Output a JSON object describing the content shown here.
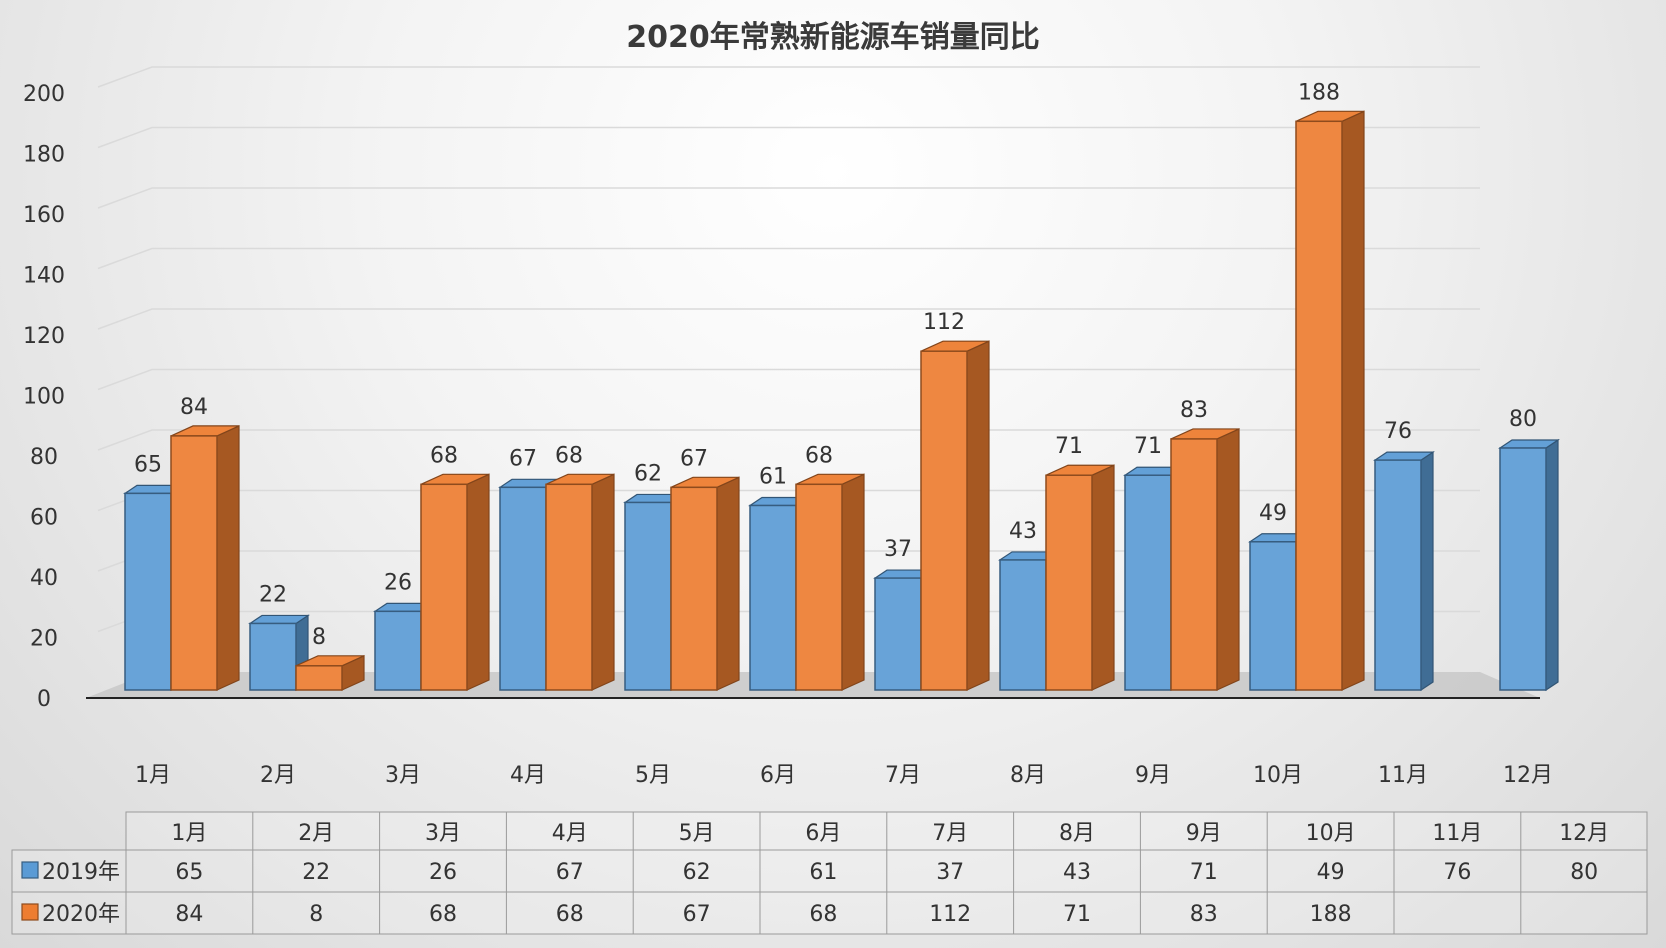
{
  "chart_data": {
    "type": "bar",
    "title": "2020年常熟新能源车销量同比",
    "categories": [
      "1月",
      "2月",
      "3月",
      "4月",
      "5月",
      "6月",
      "7月",
      "8月",
      "9月",
      "10月",
      "11月",
      "12月"
    ],
    "series": [
      {
        "name": "2019年",
        "color": "#5b9bd5",
        "values": [
          65,
          22,
          26,
          67,
          62,
          61,
          37,
          43,
          71,
          49,
          76,
          80
        ]
      },
      {
        "name": "2020年",
        "color": "#ed7d31",
        "values": [
          84,
          8,
          68,
          68,
          67,
          68,
          112,
          71,
          83,
          188,
          null,
          null
        ]
      }
    ],
    "ylim": [
      0,
      200
    ],
    "yticks": [
      0,
      20,
      40,
      60,
      80,
      100,
      120,
      140,
      160,
      180,
      200
    ],
    "gridlines": true,
    "legend": "data-table-below",
    "data_labels": true,
    "style": "3d-clustered-column"
  }
}
